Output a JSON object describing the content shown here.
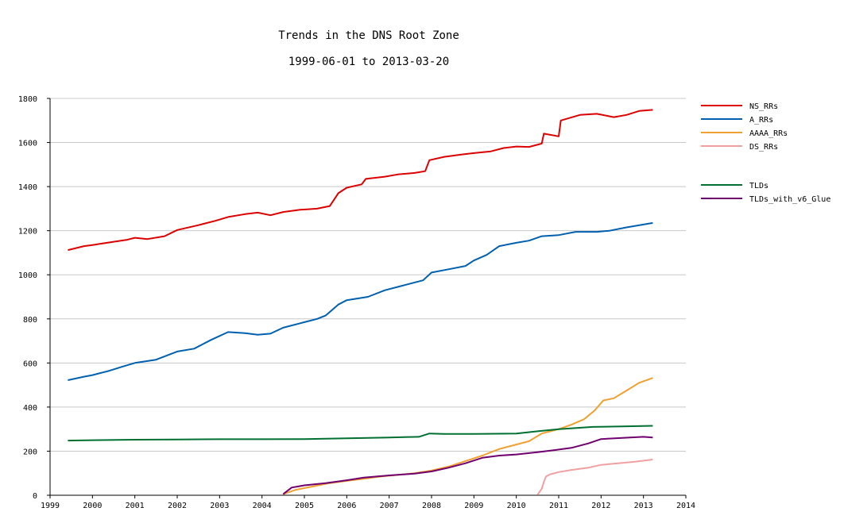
{
  "chart_data": {
    "type": "line",
    "title": "Trends in the DNS Root Zone",
    "subtitle": "1999-06-01 to 2013-03-20",
    "xlabel": "",
    "ylabel": "",
    "xlim": [
      1999,
      2014
    ],
    "ylim": [
      0,
      1800
    ],
    "x_ticks": [
      1999,
      2000,
      2001,
      2002,
      2003,
      2004,
      2005,
      2006,
      2007,
      2008,
      2009,
      2010,
      2011,
      2012,
      2013,
      2014
    ],
    "y_ticks": [
      0,
      200,
      400,
      600,
      800,
      1000,
      1200,
      1400,
      1600,
      1800
    ],
    "grid": "horizontal",
    "legend_position": "right",
    "series": [
      {
        "name": "NS_RRs",
        "color": "#dd0000",
        "group": 1,
        "x": [
          1999.42,
          1999.8,
          2000.0,
          2000.5,
          2000.8,
          2001.0,
          2001.3,
          2001.7,
          2002.0,
          2002.5,
          2002.9,
          2003.2,
          2003.6,
          2003.9,
          2004.2,
          2004.5,
          2004.9,
          2005.3,
          2005.6,
          2005.8,
          2006.0,
          2006.35,
          2006.45,
          2006.9,
          2007.2,
          2007.6,
          2007.85,
          2007.95,
          2008.3,
          2008.7,
          2009.0,
          2009.4,
          2009.7,
          2010.0,
          2010.3,
          2010.6,
          2010.65,
          2011.0,
          2011.05,
          2011.5,
          2011.9,
          2012.3,
          2012.6,
          2012.9,
          2013.22
        ],
        "values": [
          1112,
          1130,
          1135,
          1150,
          1158,
          1168,
          1162,
          1175,
          1203,
          1225,
          1245,
          1262,
          1275,
          1282,
          1270,
          1285,
          1295,
          1300,
          1312,
          1370,
          1395,
          1410,
          1435,
          1445,
          1455,
          1462,
          1470,
          1520,
          1535,
          1545,
          1552,
          1560,
          1575,
          1582,
          1580,
          1595,
          1640,
          1628,
          1700,
          1725,
          1730,
          1715,
          1725,
          1743,
          1748
        ]
      },
      {
        "name": "A_RRs",
        "color": "#0060b0",
        "group": 1,
        "x": [
          1999.42,
          1999.8,
          2000.0,
          2000.4,
          2000.7,
          2001.0,
          2001.5,
          2002.0,
          2002.4,
          2002.8,
          2003.2,
          2003.6,
          2003.9,
          2004.2,
          2004.5,
          2004.9,
          2005.3,
          2005.5,
          2005.8,
          2006.0,
          2006.5,
          2006.9,
          2007.3,
          2007.8,
          2008.0,
          2008.4,
          2008.8,
          2009.0,
          2009.3,
          2009.6,
          2010.0,
          2010.3,
          2010.6,
          2011.0,
          2011.4,
          2011.9,
          2012.2,
          2012.6,
          2013.22
        ],
        "values": [
          522,
          538,
          545,
          565,
          583,
          600,
          615,
          652,
          665,
          705,
          740,
          735,
          728,
          733,
          760,
          780,
          800,
          815,
          865,
          885,
          900,
          930,
          950,
          975,
          1010,
          1025,
          1040,
          1065,
          1090,
          1130,
          1145,
          1155,
          1175,
          1180,
          1195,
          1195,
          1200,
          1215,
          1235
        ]
      },
      {
        "name": "AAAA_RRs",
        "color": "#f0a030",
        "group": 1,
        "x": [
          2004.5,
          2004.8,
          2005.2,
          2005.6,
          2006.0,
          2006.4,
          2006.8,
          2007.2,
          2007.6,
          2008.0,
          2008.4,
          2008.8,
          2009.2,
          2009.6,
          2010.0,
          2010.3,
          2010.6,
          2011.0,
          2011.3,
          2011.6,
          2011.85,
          2012.05,
          2012.3,
          2012.6,
          2012.9,
          2013.22
        ],
        "values": [
          5,
          25,
          40,
          55,
          65,
          75,
          85,
          92,
          100,
          112,
          130,
          155,
          180,
          210,
          230,
          245,
          280,
          300,
          320,
          345,
          385,
          430,
          440,
          475,
          510,
          532
        ]
      },
      {
        "name": "DS_RRs",
        "color": "#f0a0a0",
        "group": 1,
        "x": [
          2010.5,
          2010.6,
          2010.65,
          2010.7,
          2010.8,
          2011.0,
          2011.3,
          2011.7,
          2012.0,
          2012.4,
          2012.8,
          2013.22
        ],
        "values": [
          2,
          30,
          60,
          85,
          95,
          105,
          115,
          125,
          138,
          145,
          152,
          162
        ]
      },
      {
        "name": "TLDs",
        "color": "#007030",
        "group": 2,
        "x": [
          1999.42,
          2000.0,
          2001.0,
          2002.0,
          2003.0,
          2004.0,
          2005.0,
          2006.0,
          2007.0,
          2007.7,
          2007.95,
          2008.3,
          2009.0,
          2010.0,
          2010.5,
          2011.0,
          2011.8,
          2012.5,
          2013.22
        ],
        "values": [
          248,
          250,
          252,
          253,
          254,
          254,
          255,
          258,
          262,
          265,
          280,
          278,
          278,
          280,
          290,
          300,
          310,
          312,
          315
        ]
      },
      {
        "name": "TLDs_with_v6_Glue",
        "color": "#700070",
        "group": 2,
        "x": [
          2004.5,
          2004.7,
          2005.0,
          2005.5,
          2006.0,
          2006.4,
          2007.0,
          2007.6,
          2008.0,
          2008.4,
          2008.8,
          2009.2,
          2009.6,
          2010.0,
          2010.5,
          2010.9,
          2011.3,
          2011.7,
          2012.0,
          2012.5,
          2013.0,
          2013.22
        ],
        "values": [
          5,
          35,
          45,
          55,
          68,
          80,
          90,
          98,
          108,
          125,
          145,
          170,
          180,
          185,
          195,
          205,
          215,
          235,
          255,
          260,
          265,
          262
        ]
      }
    ]
  }
}
